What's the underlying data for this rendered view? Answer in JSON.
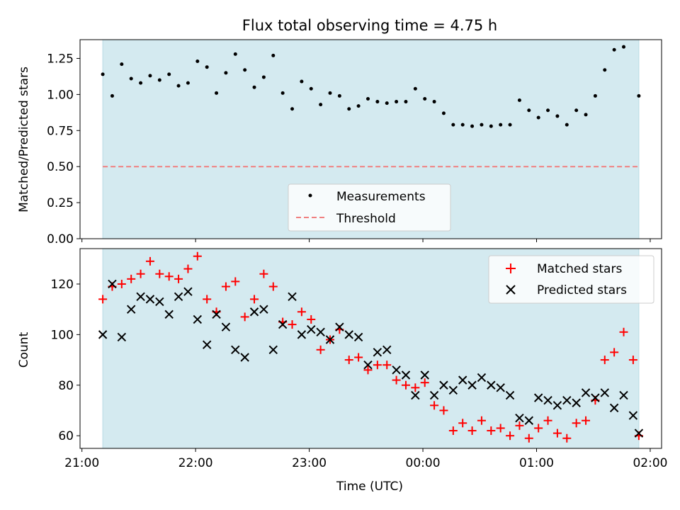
{
  "title": "Flux total observing time = 4.75 h",
  "colors": {
    "shade": "#d4eaf0",
    "measurement": "#000000",
    "threshold": "#f08080",
    "matched": "#ff0000",
    "predicted": "#000000"
  },
  "chart_data": [
    {
      "type": "scatter",
      "ylabel": "Matched/Predicted stars",
      "ylim": [
        0,
        1.38
      ],
      "yticks": [
        0,
        0.25,
        0.5,
        0.75,
        1.0,
        1.25
      ],
      "ytick_labels": [
        "0.00",
        "0.25",
        "0.50",
        "0.75",
        "1.00",
        "1.25"
      ],
      "legend": {
        "placement": "lower-center",
        "entries": [
          "Measurements",
          "Threshold"
        ]
      },
      "threshold": {
        "name": "Threshold",
        "y": 0.5,
        "x_start": "21:11",
        "x_end": "01:54"
      },
      "shaded_region": {
        "x_start": "21:11",
        "x_end": "01:54"
      },
      "series": [
        {
          "name": "Measurements",
          "x": [
            "21:11",
            "21:16",
            "21:21",
            "21:26",
            "21:31",
            "21:36",
            "21:41",
            "21:46",
            "21:51",
            "21:56",
            "22:01",
            "22:06",
            "22:11",
            "22:16",
            "22:21",
            "22:26",
            "22:31",
            "22:36",
            "22:41",
            "22:46",
            "22:51",
            "22:56",
            "23:01",
            "23:06",
            "23:11",
            "23:16",
            "23:21",
            "23:26",
            "23:31",
            "23:36",
            "23:41",
            "23:46",
            "23:51",
            "23:56",
            "00:01",
            "00:06",
            "00:11",
            "00:16",
            "00:21",
            "00:26",
            "00:31",
            "00:36",
            "00:41",
            "00:46",
            "00:51",
            "00:56",
            "01:01",
            "01:06",
            "01:11",
            "01:16",
            "01:21",
            "01:26",
            "01:31",
            "01:36",
            "01:41",
            "01:46",
            "01:54"
          ],
          "y": [
            1.14,
            0.99,
            1.21,
            1.11,
            1.08,
            1.13,
            1.1,
            1.14,
            1.06,
            1.08,
            1.23,
            1.19,
            1.01,
            1.15,
            1.28,
            1.17,
            1.05,
            1.12,
            1.27,
            1.01,
            0.9,
            1.09,
            1.04,
            0.93,
            1.01,
            0.99,
            0.9,
            0.92,
            0.97,
            0.95,
            0.94,
            0.95,
            0.95,
            1.04,
            0.97,
            0.95,
            0.87,
            0.79,
            0.79,
            0.78,
            0.79,
            0.78,
            0.79,
            0.79,
            0.96,
            0.89,
            0.84,
            0.89,
            0.85,
            0.79,
            0.89,
            0.86,
            0.99,
            1.17,
            1.31,
            1.33,
            0.99
          ]
        }
      ]
    },
    {
      "type": "scatter",
      "xlabel": "Time (UTC)",
      "ylabel": "Count",
      "ylim": [
        55,
        134
      ],
      "yticks": [
        60,
        80,
        100,
        120
      ],
      "ytick_labels": [
        "60",
        "80",
        "100",
        "120"
      ],
      "xtick_labels": [
        "21:00",
        "22:00",
        "23:00",
        "00:00",
        "01:00",
        "02:00"
      ],
      "xlim": [
        "20:59",
        "02:06"
      ],
      "legend": {
        "placement": "top-right",
        "entries": [
          "Matched stars",
          "Predicted stars"
        ]
      },
      "shaded_region": {
        "x_start": "21:11",
        "x_end": "01:54"
      },
      "series": [
        {
          "name": "Matched stars",
          "marker": "plus",
          "x": [
            "21:11",
            "21:16",
            "21:21",
            "21:26",
            "21:31",
            "21:36",
            "21:41",
            "21:46",
            "21:51",
            "21:56",
            "22:01",
            "22:06",
            "22:11",
            "22:16",
            "22:21",
            "22:26",
            "22:31",
            "22:36",
            "22:41",
            "22:46",
            "22:51",
            "22:56",
            "23:01",
            "23:06",
            "23:11",
            "23:16",
            "23:21",
            "23:26",
            "23:31",
            "23:36",
            "23:41",
            "23:46",
            "23:51",
            "23:56",
            "00:01",
            "00:06",
            "00:11",
            "00:16",
            "00:21",
            "00:26",
            "00:31",
            "00:36",
            "00:41",
            "00:46",
            "00:51",
            "00:56",
            "01:01",
            "01:06",
            "01:11",
            "01:16",
            "01:21",
            "01:26",
            "01:31",
            "01:36",
            "01:41",
            "01:46",
            "01:51",
            "01:54"
          ],
          "y": [
            114,
            119,
            120,
            122,
            124,
            129,
            124,
            123,
            122,
            126,
            131,
            114,
            109,
            119,
            121,
            107,
            114,
            124,
            119,
            105,
            104,
            109,
            106,
            94,
            98,
            102,
            90,
            91,
            86,
            88,
            88,
            82,
            80,
            79,
            81,
            72,
            70,
            62,
            65,
            62,
            66,
            62,
            63,
            60,
            64,
            59,
            63,
            66,
            61,
            59,
            65,
            66,
            74,
            90,
            93,
            101,
            90,
            60
          ]
        },
        {
          "name": "Predicted stars",
          "marker": "x",
          "x": [
            "21:11",
            "21:16",
            "21:21",
            "21:26",
            "21:31",
            "21:36",
            "21:41",
            "21:46",
            "21:51",
            "21:56",
            "22:01",
            "22:06",
            "22:11",
            "22:16",
            "22:21",
            "22:26",
            "22:31",
            "22:36",
            "22:41",
            "22:46",
            "22:51",
            "22:56",
            "23:01",
            "23:06",
            "23:11",
            "23:16",
            "23:21",
            "23:26",
            "23:31",
            "23:36",
            "23:41",
            "23:46",
            "23:51",
            "23:56",
            "00:01",
            "00:06",
            "00:11",
            "00:16",
            "00:21",
            "00:26",
            "00:31",
            "00:36",
            "00:41",
            "00:46",
            "00:51",
            "00:56",
            "01:01",
            "01:06",
            "01:11",
            "01:16",
            "01:21",
            "01:26",
            "01:31",
            "01:36",
            "01:41",
            "01:46",
            "01:51",
            "01:54"
          ],
          "y": [
            100,
            120,
            99,
            110,
            115,
            114,
            113,
            108,
            115,
            117,
            106,
            96,
            108,
            103,
            94,
            91,
            109,
            110,
            94,
            104,
            115,
            100,
            102,
            101,
            98,
            103,
            100,
            99,
            88,
            93,
            94,
            86,
            84,
            76,
            84,
            76,
            80,
            78,
            82,
            80,
            83,
            80,
            79,
            76,
            67,
            66,
            75,
            74,
            72,
            74,
            73,
            77,
            75,
            77,
            71,
            76,
            68,
            61
          ]
        }
      ]
    }
  ]
}
